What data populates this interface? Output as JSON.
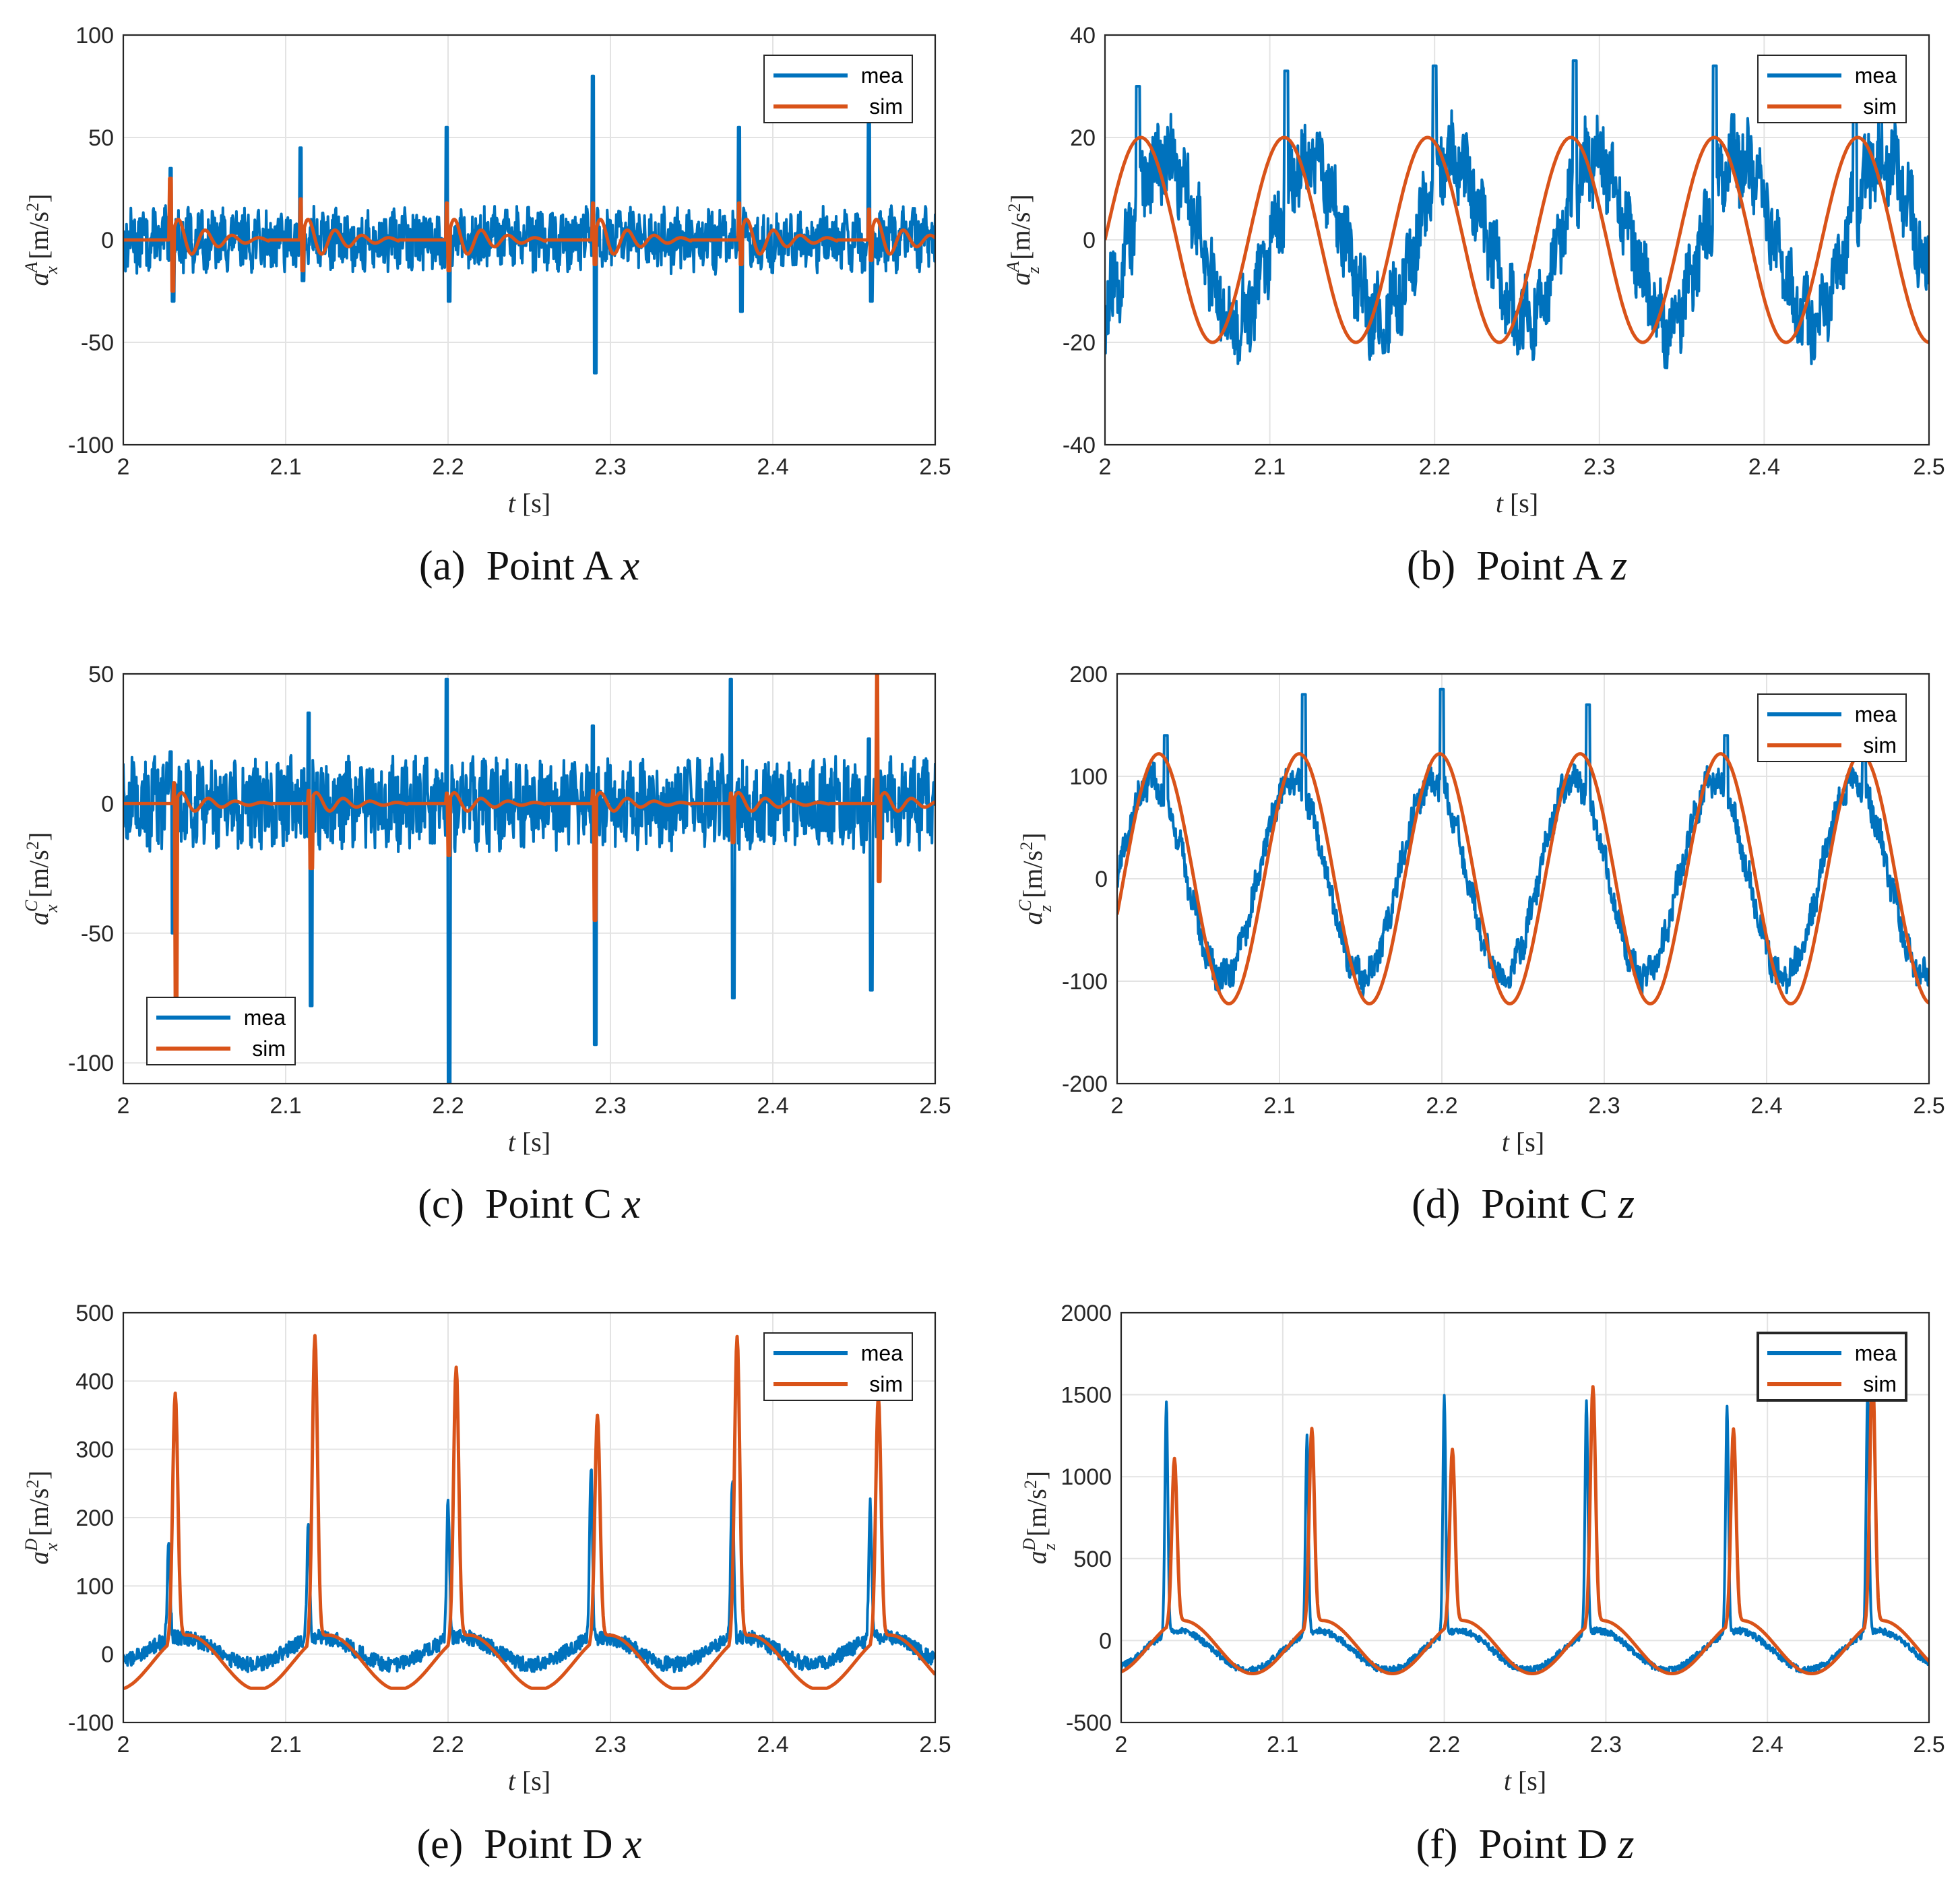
{
  "colors": {
    "mea": "#0072BD",
    "sim": "#D95319"
  },
  "chart_data": [
    {
      "type": "line",
      "caption": "(a)  Point A x",
      "xlabel": "t [s]",
      "ylabel": "a_x^A [m/s^2]",
      "xlim": [
        2,
        2.5
      ],
      "ylim": [
        -100,
        100
      ],
      "xticks": [
        2,
        2.1,
        2.2,
        2.3,
        2.4,
        2.5
      ],
      "yticks": [
        -100,
        -50,
        0,
        50,
        100
      ],
      "legend": "top-right",
      "series": [
        {
          "name": "mea",
          "kind": "mea",
          "spikes": [
            [
              2.03,
              35,
              -30
            ],
            [
              2.11,
              45,
              -20
            ],
            [
              2.2,
              55,
              -30
            ],
            [
              2.29,
              80,
              -65
            ],
            [
              2.38,
              55,
              -35
            ],
            [
              2.46,
              60,
              -30
            ]
          ]
        },
        {
          "name": "sim",
          "kind": "sim",
          "spikes": [
            [
              2.03,
              30,
              -25
            ],
            [
              2.11,
              20,
              -15
            ],
            [
              2.2,
              18,
              -15
            ],
            [
              2.29,
              18,
              -12
            ],
            [
              2.38,
              18,
              -12
            ],
            [
              2.46,
              15,
              -10
            ]
          ]
        }
      ]
    },
    {
      "type": "line",
      "caption": "(b)  Point A z",
      "xlabel": "t [s]",
      "ylabel": "a_z^A [m/s^2]",
      "xlim": [
        2,
        2.5
      ],
      "ylim": [
        -40,
        40
      ],
      "xticks": [
        2,
        2.1,
        2.2,
        2.3,
        2.4,
        2.5
      ],
      "yticks": [
        -40,
        -20,
        0,
        20,
        40
      ],
      "legend": "top-right",
      "series": [
        {
          "name": "mea",
          "kind": "mea",
          "amplitude": 20,
          "period": 0.087,
          "phase": 0.015,
          "noise": 7,
          "spikes": [
            [
              2.02,
              30,
              0
            ],
            [
              2.11,
              33,
              0
            ],
            [
              2.2,
              34,
              0
            ],
            [
              2.285,
              35,
              0
            ],
            [
              2.37,
              34,
              0
            ],
            [
              2.455,
              25,
              0
            ]
          ]
        },
        {
          "name": "sim",
          "kind": "sim",
          "amplitude": 20,
          "period": 0.087,
          "phase": 0.0,
          "noise": 0
        }
      ]
    },
    {
      "type": "line",
      "caption": "(c)  Point C x",
      "xlabel": "t [s]",
      "ylabel": "a_x^C [m/s^2]",
      "xlim": [
        2,
        2.5
      ],
      "ylim": [
        -108,
        50
      ],
      "xticks": [
        2,
        2.1,
        2.2,
        2.3,
        2.4,
        2.5
      ],
      "yticks": [
        -100,
        -50,
        0,
        50
      ],
      "legend": "bottom-left",
      "series": [
        {
          "name": "mea",
          "kind": "mea",
          "spikes": [
            [
              2.03,
              20,
              -50
            ],
            [
              2.115,
              35,
              -78
            ],
            [
              2.2,
              48,
              -108
            ],
            [
              2.29,
              30,
              -93
            ],
            [
              2.375,
              48,
              -75
            ],
            [
              2.46,
              25,
              -72
            ]
          ]
        },
        {
          "name": "sim",
          "kind": "sim",
          "spikes": [
            [
              2.032,
              8,
              -75
            ],
            [
              2.115,
              5,
              -25
            ],
            [
              2.2,
              4,
              -20
            ],
            [
              2.29,
              5,
              -45
            ],
            [
              2.375,
              4,
              -15
            ],
            [
              2.465,
              50,
              -30
            ]
          ]
        }
      ]
    },
    {
      "type": "line",
      "caption": "(d)  Point C z",
      "xlabel": "t [s]",
      "ylabel": "a_z^C [m/s^2]",
      "xlim": [
        2,
        2.5
      ],
      "ylim": [
        -200,
        200
      ],
      "xticks": [
        2,
        2.1,
        2.2,
        2.3,
        2.4,
        2.5
      ],
      "yticks": [
        -200,
        -100,
        0,
        100,
        200
      ],
      "legend": "top-right",
      "series": [
        {
          "name": "mea",
          "kind": "mea",
          "amplitude": 120,
          "period": 0.0865,
          "phase": 0.0,
          "noise": 14,
          "spikes": [
            [
              2.03,
              140,
              0
            ],
            [
              2.115,
              180,
              0
            ],
            [
              2.2,
              185,
              0
            ],
            [
              2.29,
              170,
              0
            ],
            [
              2.375,
              140,
              0
            ],
            [
              2.46,
              120,
              0
            ]
          ]
        },
        {
          "name": "sim",
          "kind": "sim",
          "amplitude": 122,
          "period": 0.0865,
          "phase": 0.004,
          "noise": 0
        }
      ]
    },
    {
      "type": "line",
      "caption": "(e)  Point D x",
      "xlabel": "t [s]",
      "ylabel": "a_x^D [m/s^2]",
      "xlim": [
        2,
        2.5
      ],
      "ylim": [
        -100,
        500
      ],
      "xticks": [
        2,
        2.1,
        2.2,
        2.3,
        2.4,
        2.5
      ],
      "yticks": [
        -100,
        0,
        100,
        200,
        300,
        400,
        500
      ],
      "legend": "top-right",
      "series": [
        {
          "name": "mea",
          "kind": "mea",
          "spikes": [
            [
              2.028,
              145,
              0
            ],
            [
              2.114,
              165,
              0
            ],
            [
              2.2,
              205,
              0
            ],
            [
              2.288,
              255,
              0
            ],
            [
              2.375,
              235,
              0
            ],
            [
              2.46,
              195,
              0
            ]
          ]
        },
        {
          "name": "sim",
          "kind": "sim",
          "spikes": [
            [
              2.032,
              360,
              0
            ],
            [
              2.118,
              445,
              0
            ],
            [
              2.205,
              398,
              0
            ],
            [
              2.292,
              327,
              0
            ],
            [
              2.378,
              443,
              0
            ],
            [
              2.465,
              355,
              0
            ]
          ]
        }
      ]
    },
    {
      "type": "line",
      "caption": "(f)  Point D z",
      "xlabel": "t [s]",
      "ylabel": "a_z^D [m/s^2]",
      "xlim": [
        2,
        2.5
      ],
      "ylim": [
        -500,
        2000
      ],
      "xticks": [
        2,
        2.1,
        2.2,
        2.3,
        2.4,
        2.5
      ],
      "yticks": [
        -500,
        0,
        500,
        1000,
        1500,
        2000
      ],
      "legend": "top-right",
      "series": [
        {
          "name": "mea",
          "kind": "mea",
          "spikes": [
            [
              2.028,
              1430,
              0
            ],
            [
              2.115,
              1210,
              0
            ],
            [
              2.2,
              1450,
              0
            ],
            [
              2.288,
              1410,
              0
            ],
            [
              2.375,
              1390,
              0
            ],
            [
              2.462,
              1470,
              0
            ]
          ]
        },
        {
          "name": "sim",
          "kind": "sim",
          "spikes": [
            [
              2.033,
              1000,
              0
            ],
            [
              2.118,
              1190,
              0
            ],
            [
              2.205,
              1060,
              0
            ],
            [
              2.292,
              1440,
              0
            ],
            [
              2.379,
              1180,
              0
            ],
            [
              2.465,
              1560,
              0
            ]
          ]
        }
      ]
    }
  ]
}
